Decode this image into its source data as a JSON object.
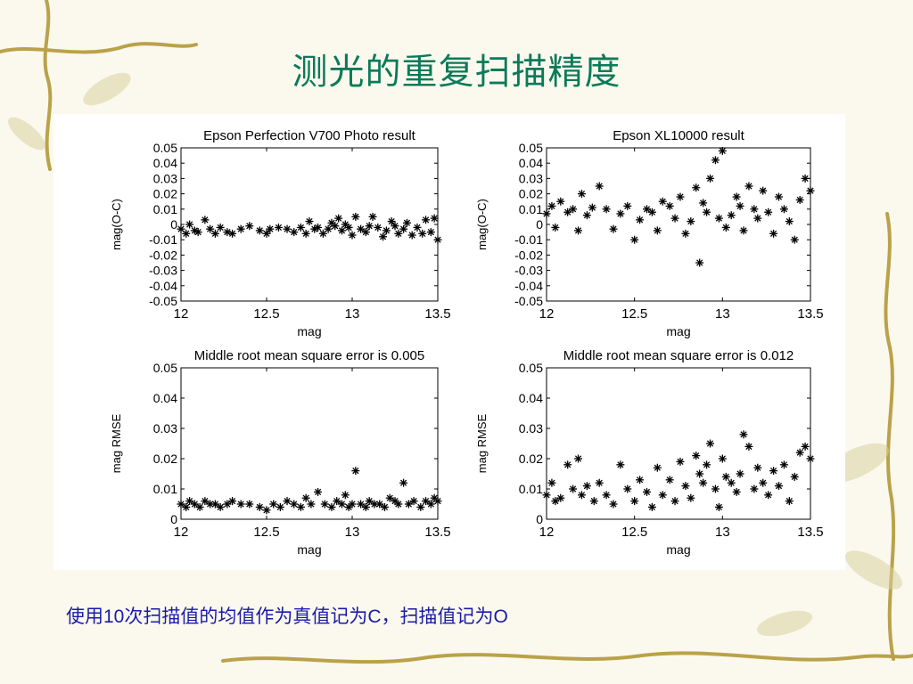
{
  "slide": {
    "title": "测光的重复扫描精度",
    "caption": {
      "part1": "使用",
      "num": "10",
      "part2": "次扫描值的均值作为真值记为",
      "c": "C",
      "part3": "，扫描值记为",
      "o": "O"
    }
  },
  "colors": {
    "title": "#0b7a5a",
    "caption": "#1a1aa8",
    "markers": "#000000"
  },
  "chart_data": [
    {
      "type": "scatter",
      "title": "Epson Perfection V700 Photo result",
      "xlabel": "mag",
      "ylabel": "mag(O-C)",
      "xlim": [
        12,
        13.5
      ],
      "ylim": [
        -0.05,
        0.05
      ],
      "xticks": [
        "12",
        "12.5",
        "13",
        "13.5"
      ],
      "yticks": [
        "0.05",
        "0.04",
        "0.03",
        "0.02",
        "0.01",
        "0",
        "-0.01",
        "-0.02",
        "-0.03",
        "-0.04",
        "-0.05"
      ],
      "x": [
        12.0,
        12.03,
        12.05,
        12.08,
        12.1,
        12.14,
        12.17,
        12.2,
        12.23,
        12.27,
        12.3,
        12.35,
        12.4,
        12.46,
        12.5,
        12.52,
        12.57,
        12.62,
        12.66,
        12.7,
        12.73,
        12.75,
        12.78,
        12.8,
        12.83,
        12.86,
        12.88,
        12.9,
        12.92,
        12.94,
        12.96,
        12.98,
        13.0,
        13.02,
        13.05,
        13.08,
        13.1,
        13.12,
        13.15,
        13.18,
        13.2,
        13.23,
        13.25,
        13.27,
        13.3,
        13.32,
        13.35,
        13.38,
        13.41,
        13.43,
        13.46,
        13.48,
        13.5
      ],
      "y": [
        -0.003,
        -0.006,
        0.0,
        -0.004,
        -0.005,
        0.003,
        -0.003,
        -0.006,
        -0.002,
        -0.005,
        -0.006,
        -0.003,
        -0.001,
        -0.004,
        -0.006,
        -0.003,
        -0.002,
        -0.003,
        -0.005,
        -0.002,
        -0.006,
        0.002,
        -0.003,
        -0.002,
        -0.006,
        -0.003,
        0.001,
        -0.001,
        0.004,
        -0.004,
        0.0,
        -0.002,
        -0.007,
        0.005,
        -0.003,
        -0.005,
        -0.001,
        0.005,
        -0.002,
        -0.008,
        -0.004,
        0.002,
        -0.001,
        -0.006,
        -0.003,
        0.001,
        -0.007,
        -0.002,
        -0.006,
        0.003,
        -0.005,
        0.004,
        -0.01
      ]
    },
    {
      "type": "scatter",
      "title": "Epson  XL10000 result",
      "xlabel": "mag",
      "ylabel": "mag(O-C)",
      "xlim": [
        12,
        13.5
      ],
      "ylim": [
        -0.05,
        0.05
      ],
      "xticks": [
        "12",
        "12.5",
        "13",
        "13.5"
      ],
      "yticks": [
        "0.05",
        "0.04",
        "0.03",
        "0.02",
        "0.01",
        "0",
        "-0.01",
        "-0.02",
        "-0.03",
        "-0.04",
        "-0.05"
      ],
      "x": [
        12.0,
        12.03,
        12.05,
        12.08,
        12.12,
        12.15,
        12.18,
        12.2,
        12.23,
        12.26,
        12.3,
        12.34,
        12.38,
        12.42,
        12.46,
        12.5,
        12.53,
        12.57,
        12.6,
        12.63,
        12.66,
        12.7,
        12.73,
        12.76,
        12.79,
        12.82,
        12.85,
        12.87,
        12.89,
        12.91,
        12.93,
        12.96,
        12.98,
        13.0,
        13.02,
        13.05,
        13.08,
        13.1,
        13.12,
        13.15,
        13.18,
        13.2,
        13.23,
        13.26,
        13.29,
        13.32,
        13.35,
        13.38,
        13.41,
        13.44,
        13.47,
        13.5
      ],
      "y": [
        0.007,
        0.012,
        -0.002,
        0.015,
        0.008,
        0.01,
        -0.004,
        0.02,
        0.006,
        0.011,
        0.025,
        0.01,
        -0.003,
        0.007,
        0.012,
        -0.01,
        0.003,
        0.01,
        0.008,
        -0.004,
        0.015,
        0.012,
        0.004,
        0.018,
        -0.006,
        0.002,
        0.024,
        -0.025,
        0.014,
        0.008,
        0.03,
        0.042,
        0.004,
        0.048,
        -0.002,
        0.006,
        0.018,
        0.012,
        -0.004,
        0.025,
        0.01,
        0.004,
        0.022,
        0.008,
        -0.006,
        0.018,
        0.01,
        0.002,
        -0.01,
        0.016,
        0.03,
        0.022
      ]
    },
    {
      "type": "scatter",
      "title": "Middle root mean square error is 0.005",
      "xlabel": "mag",
      "ylabel": "mag RMSE",
      "xlim": [
        12,
        13.5
      ],
      "ylim": [
        0,
        0.05
      ],
      "xticks": [
        "12",
        "12.5",
        "13",
        "13.5"
      ],
      "yticks": [
        "0.05",
        "0.04",
        "0.03",
        "0.02",
        "0.01",
        "0"
      ],
      "x": [
        12.0,
        12.03,
        12.05,
        12.08,
        12.11,
        12.14,
        12.17,
        12.2,
        12.23,
        12.27,
        12.3,
        12.35,
        12.4,
        12.46,
        12.5,
        12.54,
        12.58,
        12.62,
        12.66,
        12.7,
        12.73,
        12.76,
        12.8,
        12.84,
        12.88,
        12.91,
        12.94,
        12.96,
        12.98,
        13.0,
        13.02,
        13.05,
        13.08,
        13.1,
        13.13,
        13.16,
        13.19,
        13.22,
        13.25,
        13.27,
        13.3,
        13.33,
        13.36,
        13.4,
        13.43,
        13.46,
        13.48,
        13.5
      ],
      "y": [
        0.005,
        0.004,
        0.006,
        0.005,
        0.004,
        0.006,
        0.005,
        0.005,
        0.004,
        0.005,
        0.006,
        0.005,
        0.005,
        0.004,
        0.003,
        0.005,
        0.004,
        0.006,
        0.005,
        0.004,
        0.007,
        0.005,
        0.009,
        0.005,
        0.004,
        0.006,
        0.005,
        0.008,
        0.004,
        0.005,
        0.016,
        0.005,
        0.004,
        0.006,
        0.005,
        0.005,
        0.004,
        0.007,
        0.006,
        0.005,
        0.012,
        0.005,
        0.006,
        0.004,
        0.006,
        0.005,
        0.007,
        0.006
      ]
    },
    {
      "type": "scatter",
      "title": "Middle root mean square error is 0.012",
      "xlabel": "mag",
      "ylabel": "mag RMSE",
      "xlim": [
        12,
        13.5
      ],
      "ylim": [
        0,
        0.05
      ],
      "xticks": [
        "12",
        "12.5",
        "13",
        "13.5"
      ],
      "yticks": [
        "0.05",
        "0.04",
        "0.03",
        "0.02",
        "0.01",
        "0"
      ],
      "x": [
        12.0,
        12.03,
        12.05,
        12.08,
        12.12,
        12.15,
        12.18,
        12.2,
        12.23,
        12.27,
        12.3,
        12.34,
        12.38,
        12.42,
        12.46,
        12.5,
        12.53,
        12.57,
        12.6,
        12.63,
        12.66,
        12.7,
        12.73,
        12.76,
        12.79,
        12.82,
        12.85,
        12.87,
        12.89,
        12.91,
        12.93,
        12.96,
        12.98,
        13.0,
        13.02,
        13.05,
        13.08,
        13.1,
        13.12,
        13.15,
        13.18,
        13.2,
        13.23,
        13.26,
        13.29,
        13.32,
        13.35,
        13.38,
        13.41,
        13.44,
        13.47,
        13.5
      ],
      "y": [
        0.008,
        0.012,
        0.006,
        0.007,
        0.018,
        0.01,
        0.02,
        0.008,
        0.011,
        0.006,
        0.012,
        0.008,
        0.005,
        0.018,
        0.01,
        0.006,
        0.013,
        0.009,
        0.004,
        0.017,
        0.008,
        0.013,
        0.006,
        0.019,
        0.011,
        0.007,
        0.021,
        0.015,
        0.012,
        0.018,
        0.025,
        0.01,
        0.004,
        0.02,
        0.014,
        0.012,
        0.009,
        0.015,
        0.028,
        0.024,
        0.01,
        0.017,
        0.012,
        0.008,
        0.016,
        0.011,
        0.018,
        0.006,
        0.014,
        0.022,
        0.024,
        0.02
      ]
    }
  ]
}
